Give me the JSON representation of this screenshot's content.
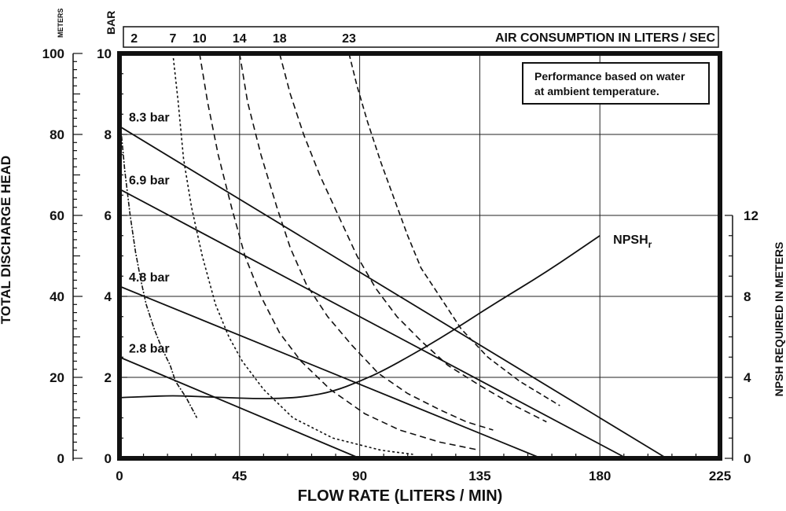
{
  "chart_data": {
    "type": "line",
    "xlabel": "FLOW RATE (LITERS / MIN)",
    "ylabel_left": "TOTAL DISCHARGE HEAD",
    "ylabel_left_units": [
      "METERS",
      "BAR"
    ],
    "ylabel_right": "NPSH REQUIRED IN METERS",
    "note": [
      "Performance based on water",
      "at ambient temperature."
    ],
    "air_axis_title": "AIR CONSUMPTION IN LITERS / SEC",
    "xlim": [
      0,
      225
    ],
    "ylim_meters": [
      0,
      100
    ],
    "ylim_bar": [
      0,
      10
    ],
    "npsh_axis_range_meters": [
      0,
      12
    ],
    "grid": true,
    "x_ticks": [
      "0",
      "45",
      "90",
      "135",
      "180",
      "225"
    ],
    "y_ticks_meters": [
      "0",
      "20",
      "40",
      "60",
      "80",
      "100"
    ],
    "y_ticks_bar": [
      "0",
      "2",
      "4",
      "6",
      "8",
      "10"
    ],
    "y_ticks_npsh": [
      "0",
      "4",
      "8",
      "12"
    ],
    "air_ticks": [
      "2",
      "7",
      "10",
      "14",
      "18",
      "23"
    ],
    "pressure_curves": [
      {
        "label": "8.3 bar",
        "x": [
          0,
          205
        ],
        "y_meters": [
          82,
          0
        ]
      },
      {
        "label": "6.9 bar",
        "x": [
          0,
          190
        ],
        "y_meters": [
          66.5,
          0
        ]
      },
      {
        "label": "4.8 bar",
        "x": [
          0,
          158
        ],
        "y_meters": [
          42.5,
          0
        ]
      },
      {
        "label": "2.8 bar",
        "x": [
          0,
          90
        ],
        "y_meters": [
          25,
          0
        ]
      }
    ],
    "air_curves": [
      {
        "label": "2",
        "points": [
          [
            0,
            85
          ],
          [
            2,
            71
          ],
          [
            4,
            60
          ],
          [
            6,
            51
          ],
          [
            8,
            44
          ],
          [
            10,
            38
          ],
          [
            13,
            32
          ],
          [
            16,
            27
          ],
          [
            19,
            23
          ],
          [
            21,
            19
          ],
          [
            25,
            15
          ],
          [
            29,
            10
          ]
        ]
      },
      {
        "label": "7",
        "points": [
          [
            20,
            100
          ],
          [
            22,
            88
          ],
          [
            24,
            74
          ],
          [
            27,
            62
          ],
          [
            31,
            50
          ],
          [
            36,
            38
          ],
          [
            41,
            30
          ],
          [
            46,
            24
          ],
          [
            54,
            17
          ],
          [
            65,
            10
          ],
          [
            80,
            5
          ],
          [
            98,
            2
          ],
          [
            110,
            1
          ]
        ]
      },
      {
        "label": "10",
        "points": [
          [
            30,
            100
          ],
          [
            33,
            88
          ],
          [
            37,
            75
          ],
          [
            42,
            62
          ],
          [
            47,
            50
          ],
          [
            53,
            40
          ],
          [
            60,
            31
          ],
          [
            68,
            24
          ],
          [
            79,
            17
          ],
          [
            92,
            11
          ],
          [
            105,
            7
          ],
          [
            120,
            4
          ],
          [
            135,
            2
          ]
        ]
      },
      {
        "label": "14",
        "points": [
          [
            45,
            100
          ],
          [
            48,
            88
          ],
          [
            53,
            75
          ],
          [
            59,
            62
          ],
          [
            64,
            52
          ],
          [
            70,
            43
          ],
          [
            78,
            35
          ],
          [
            87,
            28
          ],
          [
            97,
            21
          ],
          [
            108,
            16
          ],
          [
            120,
            12
          ],
          [
            130,
            9
          ],
          [
            140,
            7
          ]
        ]
      },
      {
        "label": "18",
        "points": [
          [
            60,
            100
          ],
          [
            64,
            90
          ],
          [
            69,
            80
          ],
          [
            75,
            70
          ],
          [
            82,
            60
          ],
          [
            89,
            50
          ],
          [
            96,
            42
          ],
          [
            104,
            35
          ],
          [
            113,
            29
          ],
          [
            123,
            23
          ],
          [
            135,
            18
          ],
          [
            148,
            13
          ],
          [
            160,
            9
          ]
        ]
      },
      {
        "label": "23",
        "points": [
          [
            86,
            100
          ],
          [
            89,
            92
          ],
          [
            93,
            83
          ],
          [
            98,
            73
          ],
          [
            103,
            64
          ],
          [
            108,
            55
          ],
          [
            113,
            47
          ],
          [
            120,
            40
          ],
          [
            128,
            32
          ],
          [
            138,
            25
          ],
          [
            150,
            19
          ],
          [
            165,
            13
          ]
        ]
      }
    ],
    "npsh_curve": {
      "label": "NPSH",
      "label_subscript": "r",
      "x": [
        0,
        10,
        20,
        30,
        40,
        50,
        60,
        70,
        80,
        90,
        100,
        120,
        140,
        160,
        180
      ],
      "y_meters": [
        3.0,
        3.05,
        3.1,
        3.05,
        3.0,
        2.95,
        2.95,
        3.05,
        3.3,
        3.8,
        4.4,
        5.9,
        7.6,
        9.2,
        11.0
      ]
    }
  }
}
